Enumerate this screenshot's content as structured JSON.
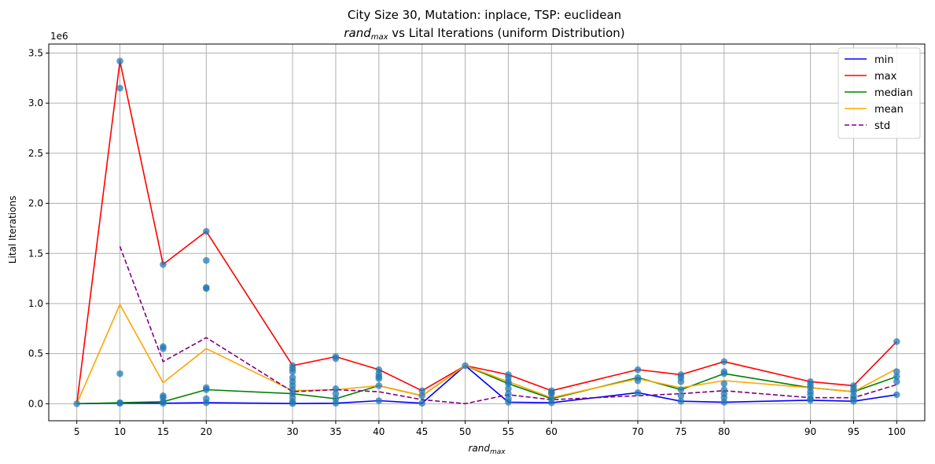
{
  "chart_data": {
    "type": "line",
    "title_line1": "City Size 30, Mutation: inplace, TSP: euclidean",
    "title_line2": {
      "prefix": "rand",
      "subscript": "max",
      "suffix": " vs Lital Iterations (uniform Distribution)"
    },
    "xlabel": {
      "base": "rand",
      "subscript": "max"
    },
    "ylabel": "Lital Iterations",
    "y_offset_text": "1e6",
    "y_scale": 1000000,
    "xlim": [
      1.75,
      103.25
    ],
    "ylim": [
      -0.17,
      3.59
    ],
    "x_ticks": [
      5,
      10,
      15,
      20,
      30,
      35,
      40,
      45,
      50,
      55,
      60,
      70,
      75,
      80,
      90,
      95,
      100
    ],
    "y_ticks": [
      0.0,
      0.5,
      1.0,
      1.5,
      2.0,
      2.5,
      3.0,
      3.5
    ],
    "y_tick_labels": [
      "0.0",
      "0.5",
      "1.0",
      "1.5",
      "2.0",
      "2.5",
      "3.0",
      "3.5"
    ],
    "grid": true,
    "legend_position": "top-right",
    "x": [
      5,
      10,
      15,
      20,
      30,
      35,
      40,
      45,
      50,
      55,
      60,
      70,
      75,
      80,
      90,
      95,
      100
    ],
    "series": [
      {
        "name": "min",
        "color": "#0000ff",
        "dash": "solid",
        "values": [
          0.0,
          0.005,
          0.005,
          0.01,
          0.002,
          0.005,
          0.03,
          0.005,
          0.38,
          0.015,
          0.01,
          0.11,
          0.025,
          0.015,
          0.035,
          0.025,
          0.09
        ]
      },
      {
        "name": "max",
        "color": "#ff0000",
        "dash": "solid",
        "values": [
          0.0,
          3.42,
          1.39,
          1.72,
          0.38,
          0.47,
          0.34,
          0.13,
          0.38,
          0.29,
          0.13,
          0.34,
          0.29,
          0.42,
          0.22,
          0.18,
          0.62
        ]
      },
      {
        "name": "median",
        "color": "#008000",
        "dash": "solid",
        "values": [
          0.0,
          0.01,
          0.02,
          0.14,
          0.1,
          0.05,
          0.18,
          0.08,
          0.38,
          0.2,
          0.05,
          0.26,
          0.14,
          0.3,
          0.16,
          0.12,
          0.27
        ]
      },
      {
        "name": "mean",
        "color": "#ffa500",
        "dash": "solid",
        "values": [
          0.0,
          0.99,
          0.21,
          0.55,
          0.13,
          0.14,
          0.18,
          0.08,
          0.38,
          0.22,
          0.06,
          0.25,
          0.16,
          0.23,
          0.16,
          0.12,
          0.35
        ]
      },
      {
        "name": "std",
        "color": "#800080",
        "dash": "dashed",
        "x": [
          10,
          15,
          20,
          30,
          35,
          40,
          45,
          50,
          55,
          60,
          70,
          75,
          80,
          90,
          95,
          100
        ],
        "values": [
          1.57,
          0.42,
          0.66,
          0.12,
          0.14,
          0.12,
          0.04,
          0.0,
          0.09,
          0.04,
          0.08,
          0.1,
          0.13,
          0.06,
          0.06,
          0.19
        ]
      }
    ],
    "scatter": {
      "color": "#1f77b4",
      "points": [
        [
          5,
          0.0
        ],
        [
          10,
          3.42
        ],
        [
          10,
          3.15
        ],
        [
          10,
          0.3
        ],
        [
          10,
          0.01
        ],
        [
          10,
          0.005
        ],
        [
          15,
          1.39
        ],
        [
          15,
          0.57
        ],
        [
          15,
          0.55
        ],
        [
          15,
          0.08
        ],
        [
          15,
          0.06
        ],
        [
          15,
          0.02
        ],
        [
          15,
          0.005
        ],
        [
          20,
          1.72
        ],
        [
          20,
          1.43
        ],
        [
          20,
          1.16
        ],
        [
          20,
          1.15
        ],
        [
          20,
          0.16
        ],
        [
          20,
          0.14
        ],
        [
          20,
          0.05
        ],
        [
          20,
          0.01
        ],
        [
          30,
          0.38
        ],
        [
          30,
          0.35
        ],
        [
          30,
          0.32
        ],
        [
          30,
          0.26
        ],
        [
          30,
          0.22
        ],
        [
          30,
          0.18
        ],
        [
          30,
          0.14
        ],
        [
          30,
          0.1
        ],
        [
          30,
          0.06
        ],
        [
          30,
          0.02
        ],
        [
          30,
          0.002
        ],
        [
          35,
          0.47
        ],
        [
          35,
          0.45
        ],
        [
          35,
          0.15
        ],
        [
          35,
          0.1
        ],
        [
          35,
          0.05
        ],
        [
          35,
          0.005
        ],
        [
          40,
          0.34
        ],
        [
          40,
          0.3
        ],
        [
          40,
          0.27
        ],
        [
          40,
          0.25
        ],
        [
          40,
          0.18
        ],
        [
          40,
          0.03
        ],
        [
          45,
          0.13
        ],
        [
          45,
          0.08
        ],
        [
          45,
          0.005
        ],
        [
          50,
          0.38
        ],
        [
          55,
          0.29
        ],
        [
          55,
          0.26
        ],
        [
          55,
          0.22
        ],
        [
          55,
          0.2
        ],
        [
          55,
          0.15
        ],
        [
          55,
          0.1
        ],
        [
          55,
          0.05
        ],
        [
          55,
          0.015
        ],
        [
          60,
          0.13
        ],
        [
          60,
          0.11
        ],
        [
          60,
          0.1
        ],
        [
          60,
          0.05
        ],
        [
          60,
          0.01
        ],
        [
          70,
          0.34
        ],
        [
          70,
          0.26
        ],
        [
          70,
          0.23
        ],
        [
          70,
          0.11
        ],
        [
          75,
          0.29
        ],
        [
          75,
          0.26
        ],
        [
          75,
          0.22
        ],
        [
          75,
          0.14
        ],
        [
          75,
          0.08
        ],
        [
          75,
          0.025
        ],
        [
          80,
          0.42
        ],
        [
          80,
          0.32
        ],
        [
          80,
          0.3
        ],
        [
          80,
          0.2
        ],
        [
          80,
          0.14
        ],
        [
          80,
          0.1
        ],
        [
          80,
          0.06
        ],
        [
          80,
          0.015
        ],
        [
          90,
          0.22
        ],
        [
          90,
          0.19
        ],
        [
          90,
          0.16
        ],
        [
          90,
          0.12
        ],
        [
          90,
          0.09
        ],
        [
          90,
          0.05
        ],
        [
          90,
          0.035
        ],
        [
          95,
          0.18
        ],
        [
          95,
          0.15
        ],
        [
          95,
          0.12
        ],
        [
          95,
          0.08
        ],
        [
          95,
          0.05
        ],
        [
          95,
          0.025
        ],
        [
          100,
          0.62
        ],
        [
          100,
          0.32
        ],
        [
          100,
          0.27
        ],
        [
          100,
          0.22
        ],
        [
          100,
          0.09
        ]
      ]
    }
  }
}
